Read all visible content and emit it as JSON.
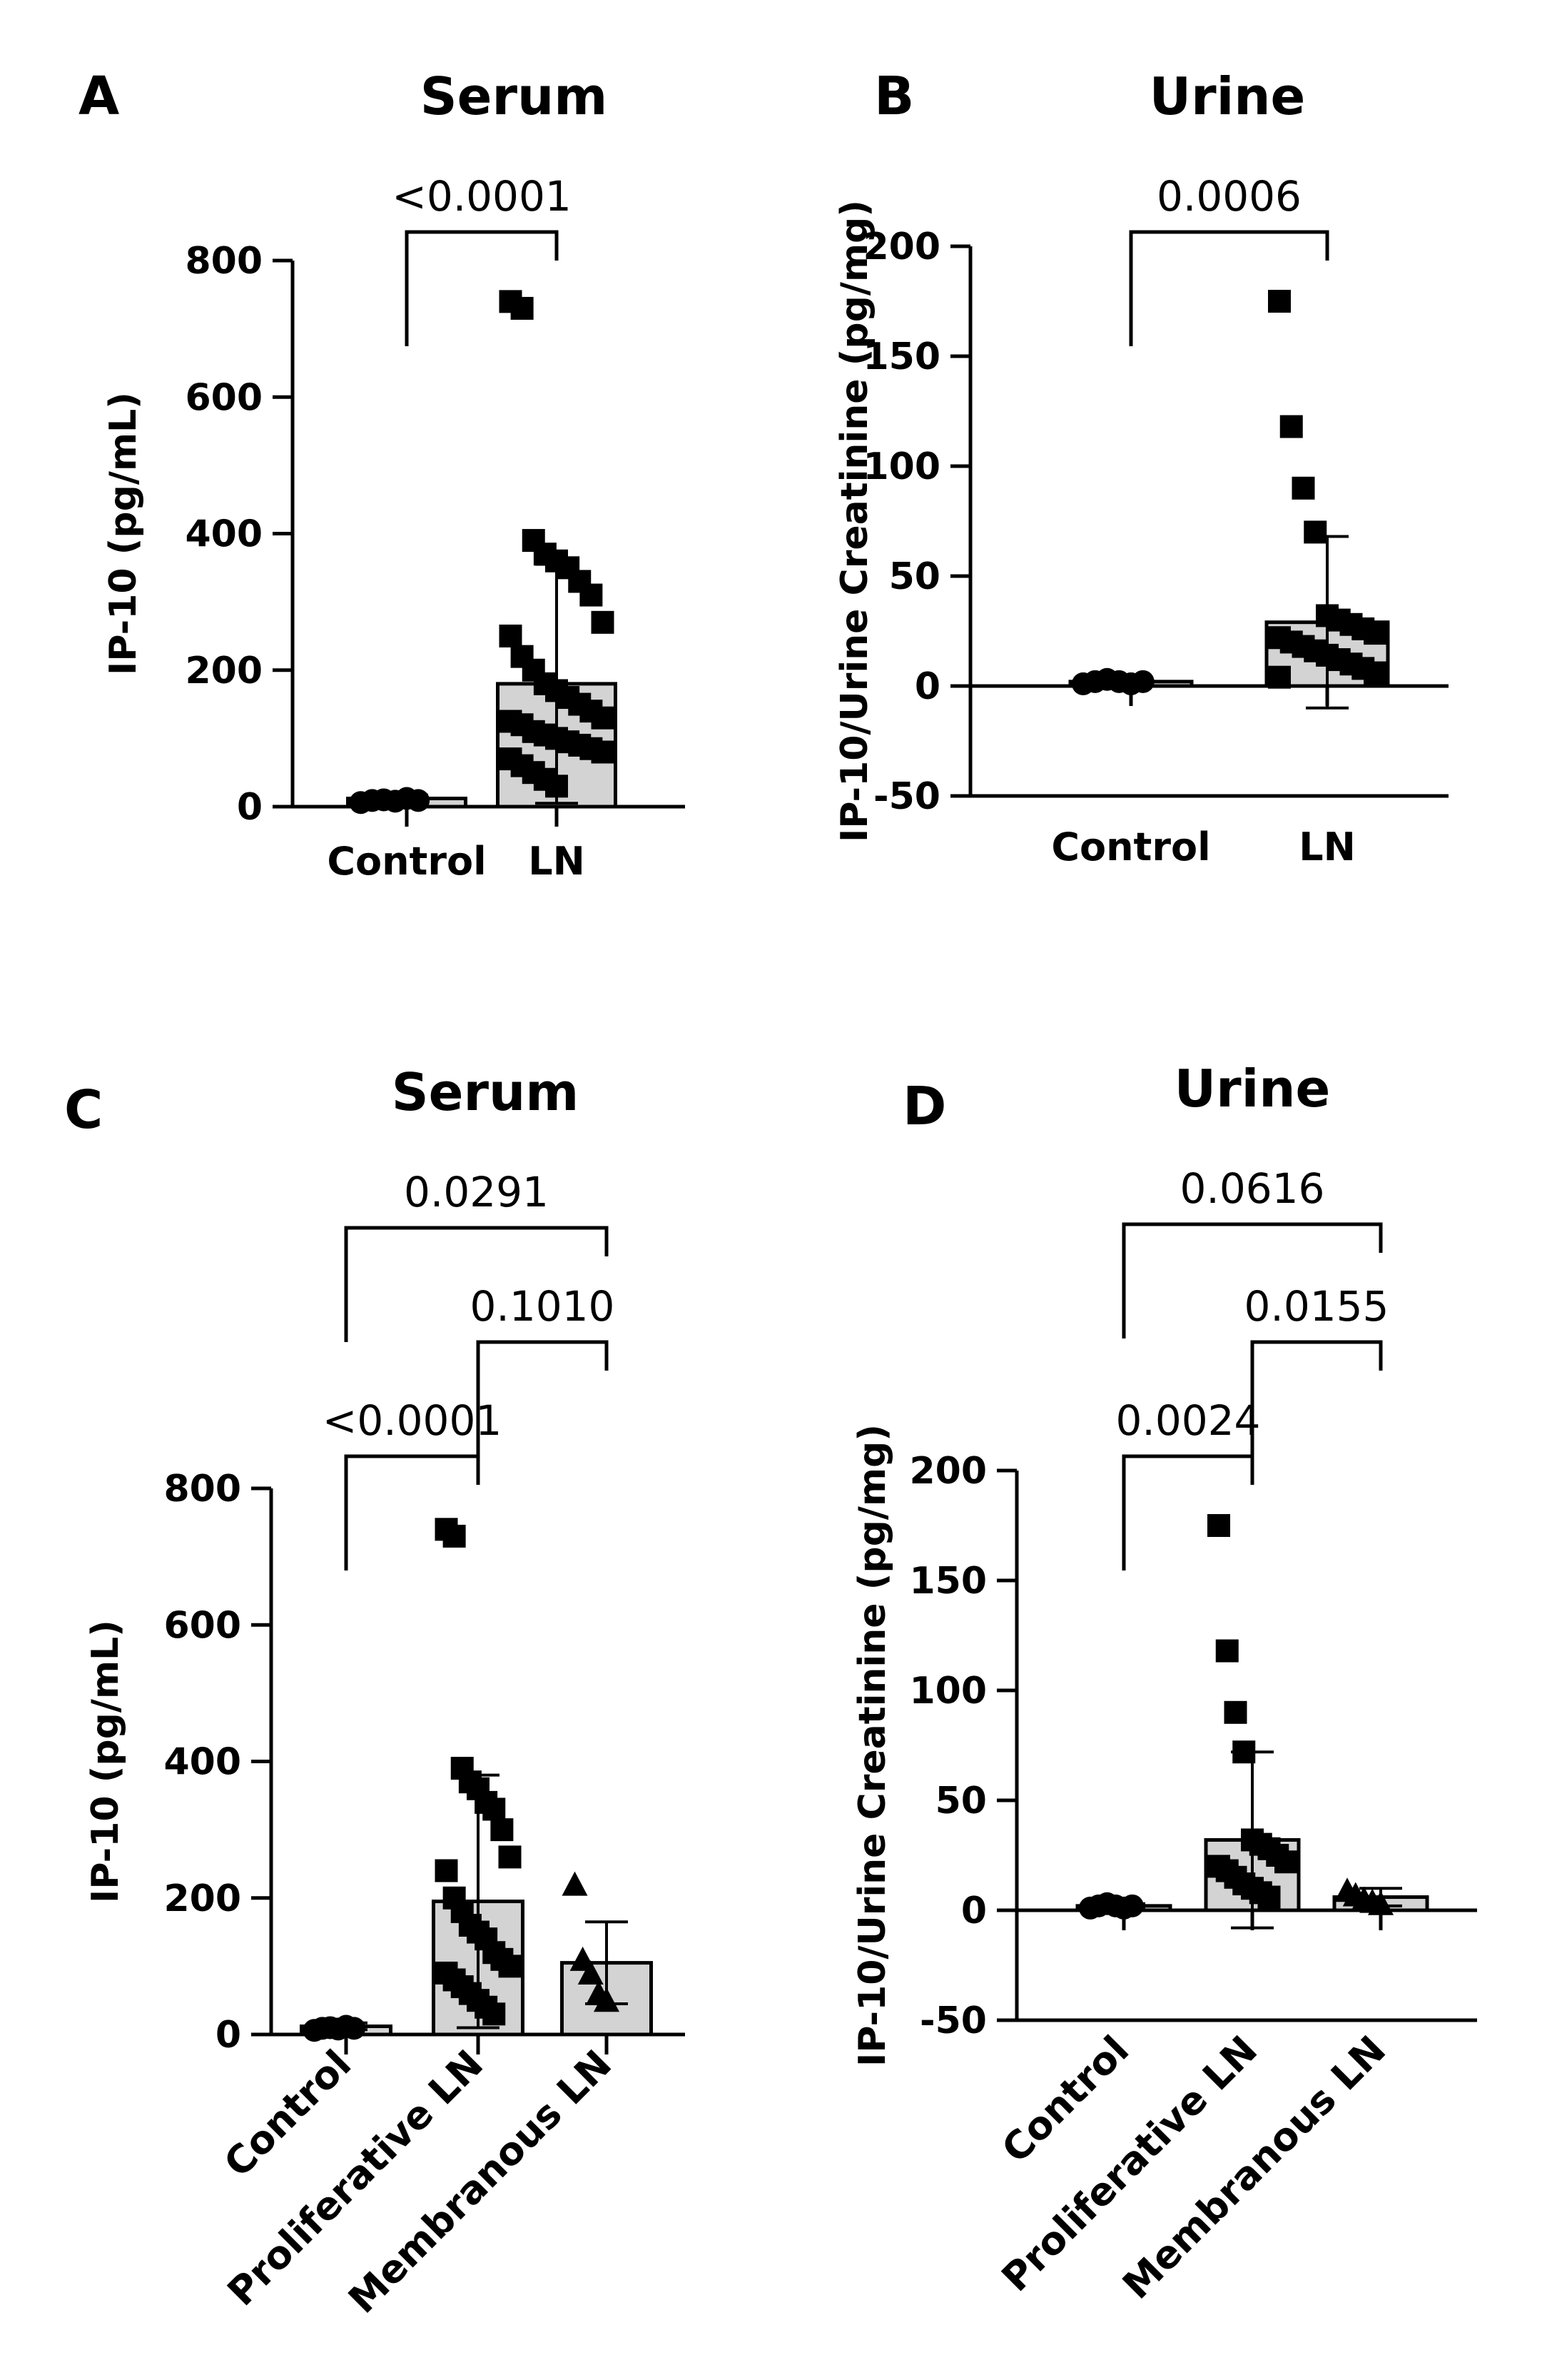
{
  "chart_data": [
    {
      "panel": "A",
      "type": "bar",
      "title": "Serum",
      "ylabel": "IP-10 (pg/mL)",
      "ylim": [
        0,
        800
      ],
      "yticks": [
        0,
        200,
        400,
        600,
        800
      ],
      "categories": [
        "Control",
        "LN"
      ],
      "series": [
        {
          "mean": 12,
          "sd": 5,
          "marker": "circle",
          "points": [
            6,
            9,
            10,
            8,
            12,
            9
          ]
        },
        {
          "mean": 180,
          "sd": 175,
          "marker": "square",
          "points": [
            740,
            730,
            390,
            370,
            360,
            350,
            330,
            310,
            270,
            250,
            220,
            200,
            180,
            170,
            160,
            150,
            140,
            130,
            125,
            120,
            110,
            105,
            100,
            95,
            90,
            85,
            80,
            70,
            60,
            50,
            40,
            30
          ]
        }
      ],
      "comparisons": [
        {
          "from": 0,
          "to": 1,
          "label": "<0.0001"
        }
      ]
    },
    {
      "panel": "B",
      "type": "bar",
      "title": "Urine",
      "ylabel": "IP-10/Urine Creatinine (pg/mg)",
      "ylim": [
        -50,
        200
      ],
      "yticks": [
        -50,
        0,
        50,
        100,
        150,
        200
      ],
      "categories": [
        "Control",
        "LN"
      ],
      "series": [
        {
          "mean": 2,
          "sd": 1,
          "marker": "circle",
          "points": [
            1,
            2,
            3,
            2,
            1,
            2
          ]
        },
        {
          "mean": 29,
          "sd": 39,
          "marker": "square",
          "points": [
            175,
            118,
            90,
            70,
            32,
            30,
            28,
            26,
            24,
            22,
            20,
            18,
            16,
            14,
            12,
            10,
            8,
            6,
            4
          ]
        }
      ],
      "comparisons": [
        {
          "from": 0,
          "to": 1,
          "label": "0.0006"
        }
      ]
    },
    {
      "panel": "C",
      "type": "bar",
      "title": "Serum",
      "ylabel": "IP-10 (pg/mL)",
      "ylim": [
        0,
        800
      ],
      "yticks": [
        0,
        200,
        400,
        600,
        800
      ],
      "categories": [
        "Control",
        "Proliferative LN",
        "Membranous LN"
      ],
      "series": [
        {
          "mean": 12,
          "sd": 5,
          "marker": "circle",
          "points": [
            6,
            9,
            10,
            8,
            12,
            9
          ]
        },
        {
          "mean": 195,
          "sd": 185,
          "marker": "square",
          "points": [
            740,
            730,
            390,
            370,
            360,
            340,
            330,
            300,
            260,
            240,
            200,
            180,
            160,
            150,
            140,
            120,
            110,
            100,
            90,
            80,
            70,
            60,
            50,
            40,
            30
          ]
        },
        {
          "mean": 105,
          "sd": 60,
          "marker": "triangle",
          "points": [
            220,
            110,
            90,
            60,
            50
          ]
        }
      ],
      "comparisons": [
        {
          "from": 0,
          "to": 2,
          "label": "0.0291"
        },
        {
          "from": 1,
          "to": 2,
          "label": "0.1010"
        },
        {
          "from": 0,
          "to": 1,
          "label": "<0.0001"
        }
      ]
    },
    {
      "panel": "D",
      "type": "bar",
      "title": "Urine",
      "ylabel": "IP-10/Urine Creatinine (pg/mg)",
      "ylim": [
        -50,
        200
      ],
      "yticks": [
        -50,
        0,
        50,
        100,
        150,
        200
      ],
      "categories": [
        "Control",
        "Proliferative LN",
        "Membranous LN"
      ],
      "series": [
        {
          "mean": 2,
          "sd": 1,
          "marker": "circle",
          "points": [
            1,
            2,
            3,
            2,
            1,
            2
          ]
        },
        {
          "mean": 32,
          "sd": 40,
          "marker": "square",
          "points": [
            175,
            118,
            90,
            72,
            32,
            30,
            28,
            25,
            22,
            20,
            18,
            15,
            12,
            10,
            8,
            6
          ]
        },
        {
          "mean": 6,
          "sd": 4,
          "marker": "triangle",
          "points": [
            9,
            7,
            5,
            4,
            3
          ]
        }
      ],
      "comparisons": [
        {
          "from": 0,
          "to": 2,
          "label": "0.0616"
        },
        {
          "from": 1,
          "to": 2,
          "label": "0.0155"
        },
        {
          "from": 0,
          "to": 1,
          "label": "0.0024"
        }
      ]
    }
  ]
}
